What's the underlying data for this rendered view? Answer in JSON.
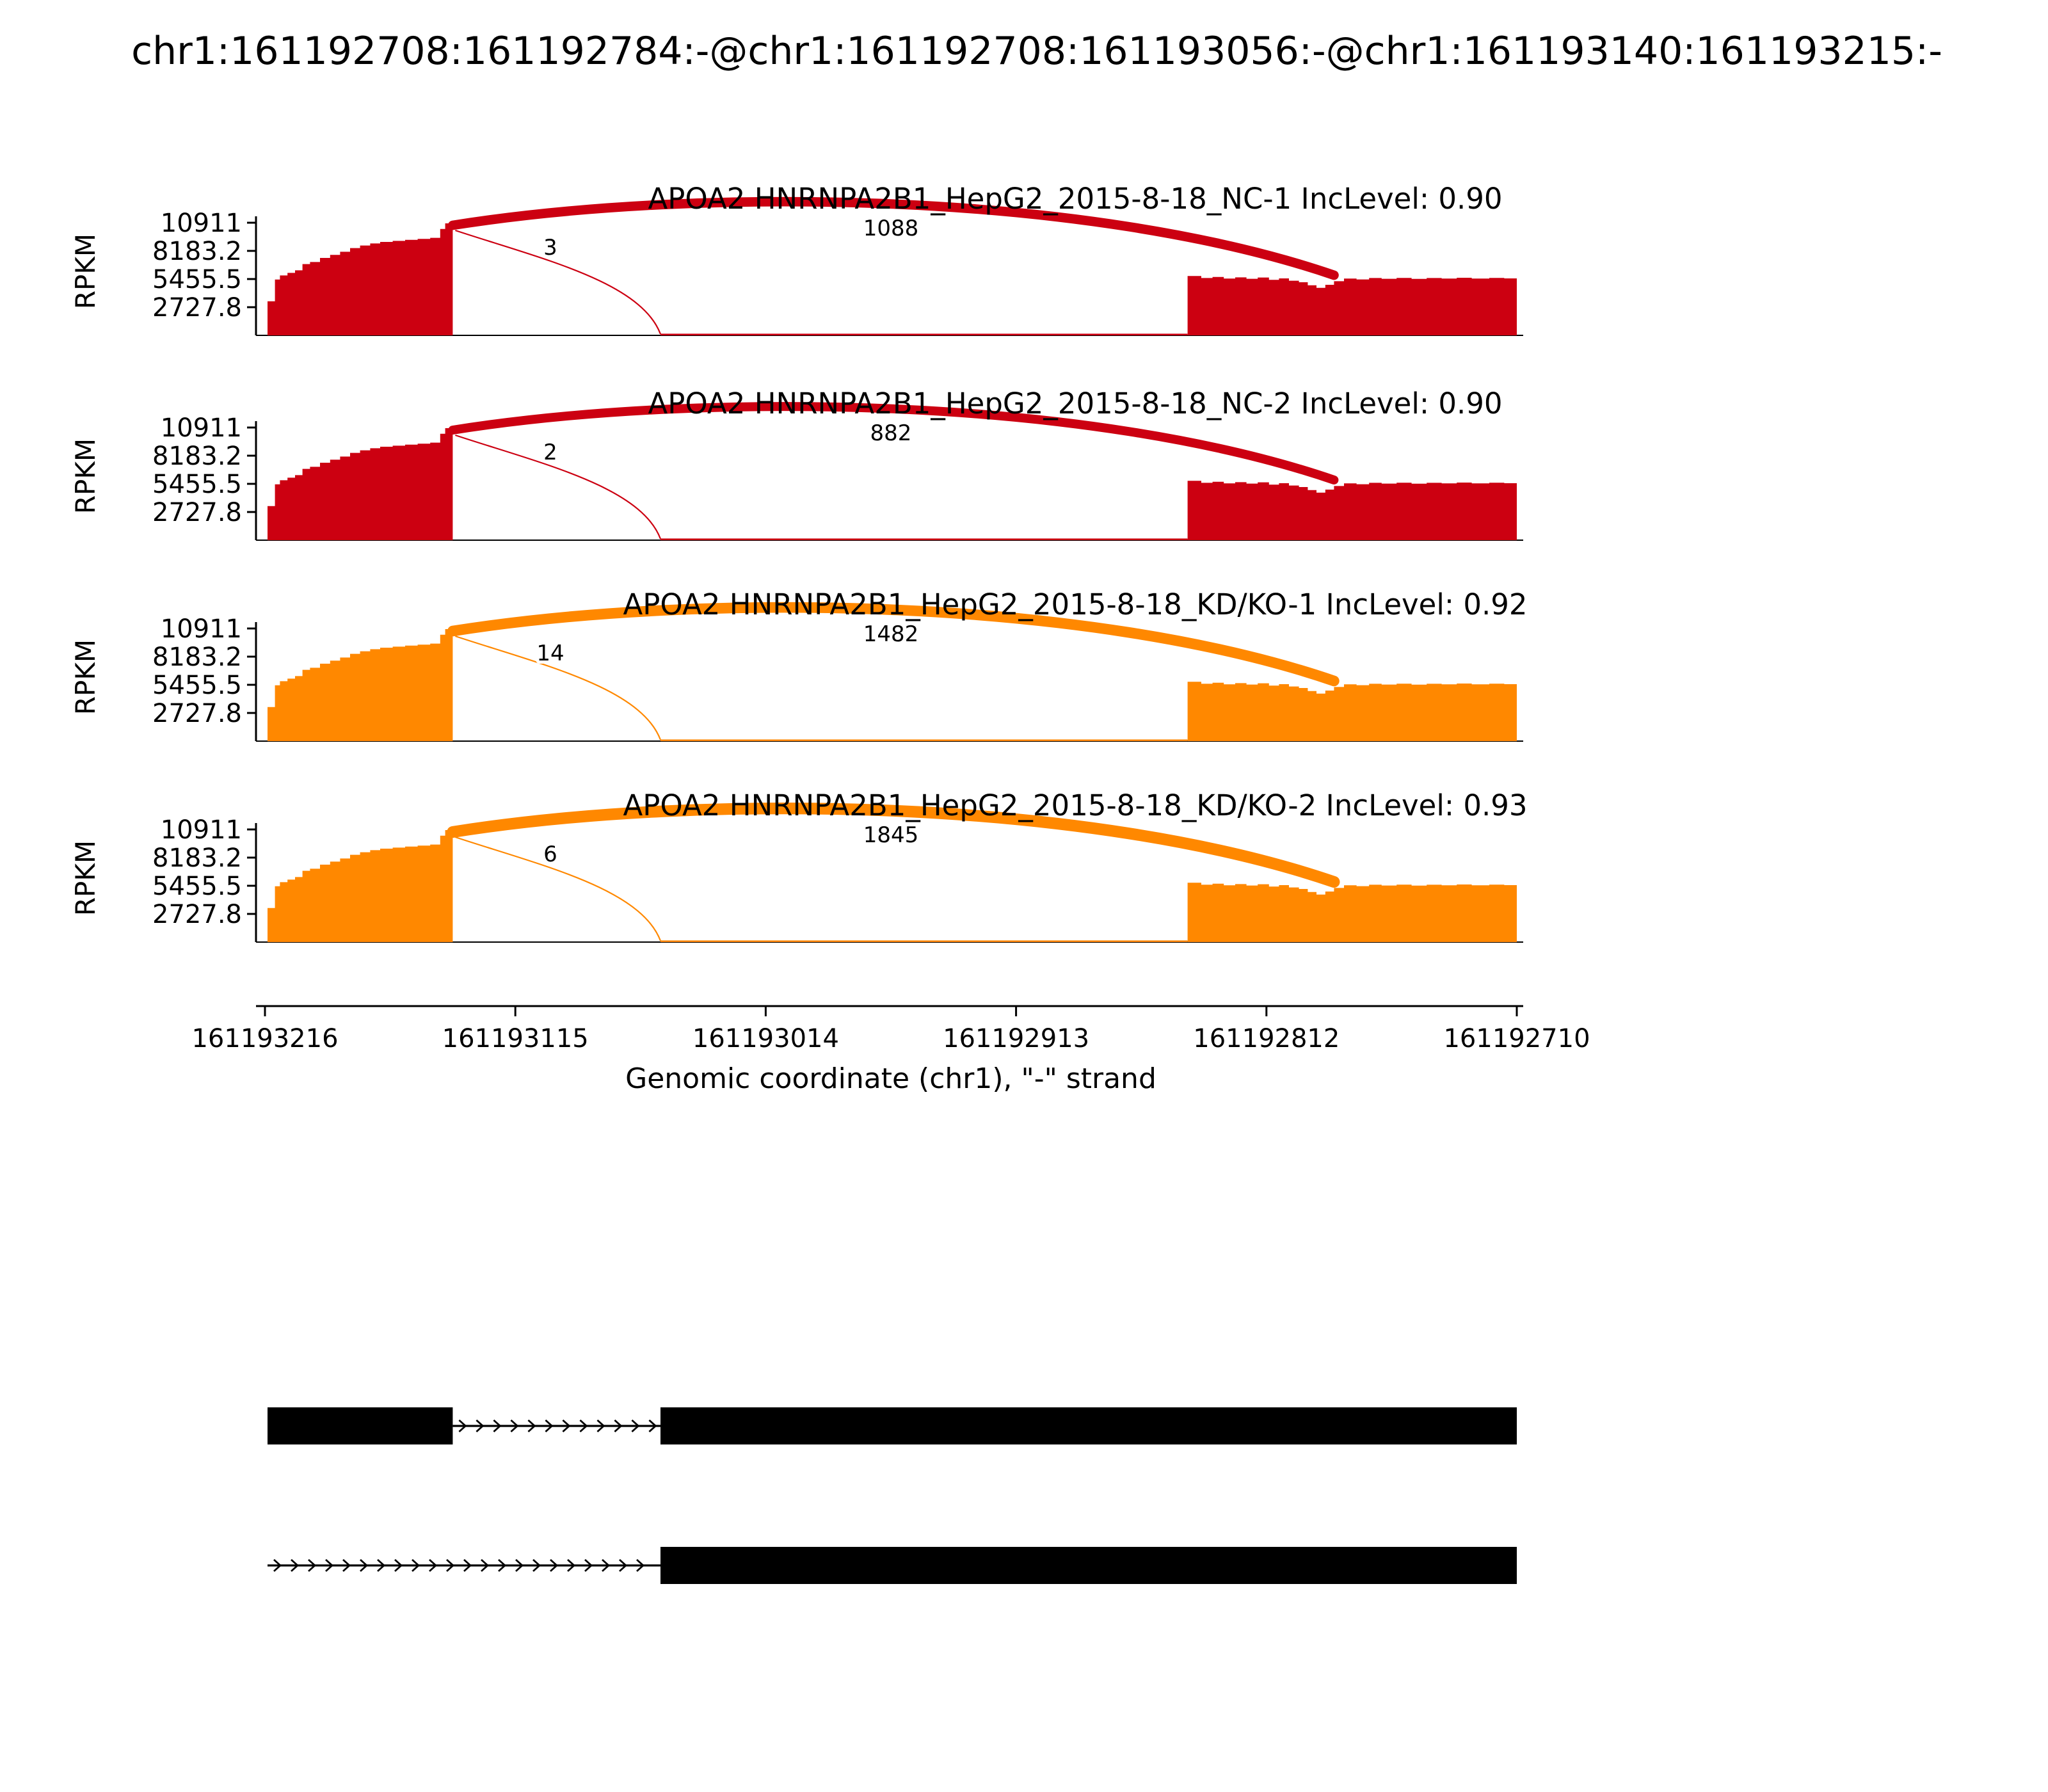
{
  "title": "chr1:161192708:161192784:-@chr1:161192708:161193056:-@chr1:161193140:161193215:-",
  "chart_data": {
    "type": "sashimi",
    "title": "chr1:161192708:161192784:-@chr1:161192708:161193056:-@chr1:161193140:161193215:-",
    "xlabel": "Genomic coordinate (chr1), \"-\" strand",
    "ylabel": "RPKM",
    "strand": "-",
    "chromosome": "chr1",
    "x_tick_labels": [
      "161193216",
      "161193115",
      "161193014",
      "161192913",
      "161192812",
      "161192710"
    ],
    "y_tick_labels": [
      "10911",
      "8183.2",
      "5455.5",
      "2727.8"
    ],
    "y_tick_values": [
      10911,
      8183.2,
      5455.5,
      2727.8
    ],
    "y_max": 10911,
    "x_range_bp": [
      161193216,
      161192710
    ],
    "colors": {
      "nc": "#CC0011",
      "kdko": "#FF8800",
      "gene_model": "#000000"
    },
    "tracks": [
      {
        "label": "APOA2 HNRNPA2B1_HepG2_2015-8-18_NC-1 IncLevel: 0.90",
        "color_key": "nc",
        "major_junction_reads": 1088,
        "minor_junction_reads": 3,
        "inc_level": 0.9
      },
      {
        "label": "APOA2 HNRNPA2B1_HepG2_2015-8-18_NC-2 IncLevel: 0.90",
        "color_key": "nc",
        "major_junction_reads": 882,
        "minor_junction_reads": 2,
        "inc_level": 0.9
      },
      {
        "label": "APOA2 HNRNPA2B1_HepG2_2015-8-18_KD/KO-1 IncLevel: 0.92",
        "color_key": "kdko",
        "major_junction_reads": 1482,
        "minor_junction_reads": 14,
        "inc_level": 0.92
      },
      {
        "label": "APOA2 HNRNPA2B1_HepG2_2015-8-18_KD/KO-2 IncLevel: 0.93",
        "color_key": "kdko",
        "major_junction_reads": 1845,
        "minor_junction_reads": 6,
        "inc_level": 0.93
      }
    ],
    "coverage_profile_left": [
      [
        0.002,
        3300
      ],
      [
        0.008,
        5400
      ],
      [
        0.012,
        5800
      ],
      [
        0.018,
        6050
      ],
      [
        0.024,
        6300
      ],
      [
        0.03,
        6900
      ],
      [
        0.036,
        7100
      ],
      [
        0.044,
        7500
      ],
      [
        0.052,
        7800
      ],
      [
        0.06,
        8100
      ],
      [
        0.068,
        8450
      ],
      [
        0.076,
        8700
      ],
      [
        0.084,
        8900
      ],
      [
        0.092,
        9050
      ],
      [
        0.102,
        9150
      ],
      [
        0.112,
        9250
      ],
      [
        0.122,
        9350
      ],
      [
        0.132,
        9450
      ],
      [
        0.14,
        10300
      ],
      [
        0.144,
        10850
      ],
      [
        0.15,
        10911
      ]
    ],
    "coverage_profile_right": [
      [
        0.737,
        5750
      ],
      [
        0.748,
        5550
      ],
      [
        0.757,
        5650
      ],
      [
        0.766,
        5500
      ],
      [
        0.775,
        5620
      ],
      [
        0.784,
        5480
      ],
      [
        0.793,
        5600
      ],
      [
        0.802,
        5380
      ],
      [
        0.81,
        5520
      ],
      [
        0.818,
        5300
      ],
      [
        0.826,
        5150
      ],
      [
        0.833,
        4850
      ],
      [
        0.84,
        4600
      ],
      [
        0.847,
        4900
      ],
      [
        0.854,
        5250
      ],
      [
        0.862,
        5500
      ],
      [
        0.872,
        5420
      ],
      [
        0.882,
        5560
      ],
      [
        0.892,
        5480
      ],
      [
        0.904,
        5570
      ],
      [
        0.916,
        5470
      ],
      [
        0.928,
        5560
      ],
      [
        0.94,
        5500
      ],
      [
        0.952,
        5580
      ],
      [
        0.964,
        5500
      ],
      [
        0.978,
        5570
      ],
      [
        0.99,
        5520
      ],
      [
        1.0,
        5560
      ]
    ],
    "low_coverage_strip": [
      0.316,
      0.737
    ],
    "features": {
      "upstream_exon": [
        0.002,
        0.15
      ],
      "minor_junction_end": 0.316,
      "downstream_block_start": 0.737,
      "major_junction_end": 0.854
    },
    "gene_models": [
      {
        "exons": [
          [
            0.002,
            0.15
          ],
          [
            0.316,
            1.0
          ]
        ],
        "arrow_intron": [
          0.15,
          0.316
        ]
      },
      {
        "exons": [
          [
            0.316,
            1.0
          ]
        ],
        "arrow_intron": [
          0.002,
          0.316
        ]
      }
    ]
  }
}
